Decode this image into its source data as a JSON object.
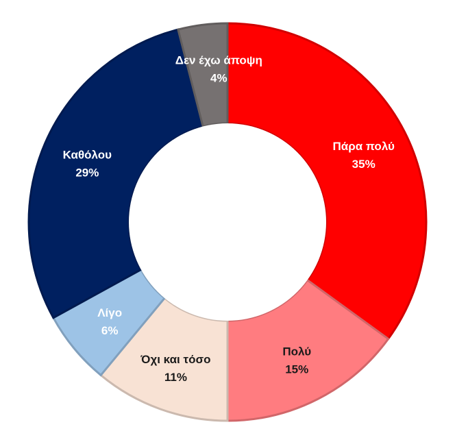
{
  "chart_data": {
    "type": "pie",
    "donut": true,
    "title": "",
    "legend": "none",
    "slices": [
      {
        "label": "Πάρα πολύ",
        "value_label": "35%",
        "value": 35,
        "color": "#ff0000",
        "text_color": "#ffffff"
      },
      {
        "label": "Πολύ",
        "value_label": "15%",
        "value": 15,
        "color": "#ff7c80",
        "text_color": "#1a1a1a"
      },
      {
        "label": "Όχι και τόσο",
        "value_label": "11%",
        "value": 11,
        "color": "#f8e2d4",
        "text_color": "#1a1a1a"
      },
      {
        "label": "Λίγο",
        "value_label": "6%",
        "value": 6,
        "color": "#9dc3e6",
        "text_color": "#ffffff"
      },
      {
        "label": "Καθόλου",
        "value_label": "29%",
        "value": 29,
        "color": "#002060",
        "text_color": "#ffffff"
      },
      {
        "label": "Δεν έχω άποψη",
        "value_label": "4%",
        "value": 4,
        "color": "#767171",
        "text_color": "#ffffff"
      }
    ]
  }
}
